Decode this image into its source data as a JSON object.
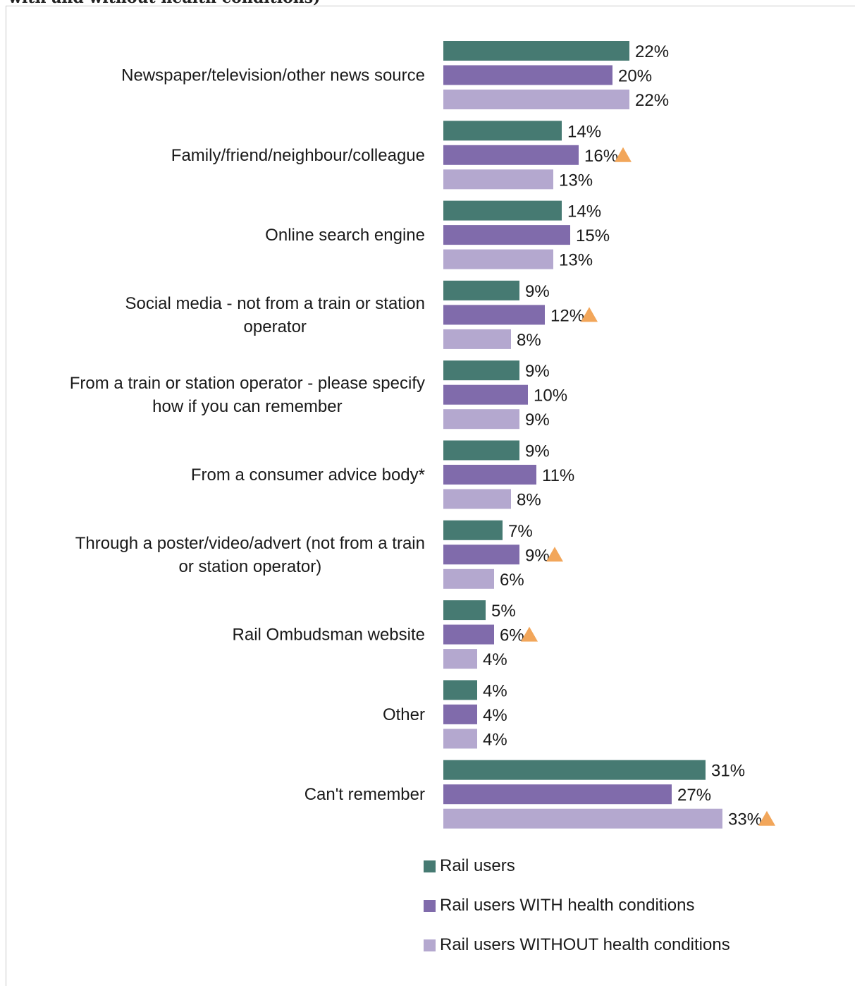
{
  "title": "with and without health conditions)",
  "colors": {
    "rail_users": "#467a72",
    "with_health": "#806bab",
    "without_health": "#b4a8cf",
    "significance_marker": "#f2a65a"
  },
  "chart_data": {
    "type": "bar",
    "orientation": "horizontal",
    "categories": [
      [
        "Newspaper/television/other news source"
      ],
      [
        "Family/friend/neighbour/colleague"
      ],
      [
        "Online search engine"
      ],
      [
        "Social media  - not from a train or station",
        "operator"
      ],
      [
        "From a train or station operator - please specify",
        "how if you can remember"
      ],
      [
        "From a consumer advice body*"
      ],
      [
        "Through a poster/video/advert (not from a train",
        "or station operator)"
      ],
      [
        "Rail Ombudsman website"
      ],
      [
        "Other"
      ],
      [
        "Can't remember"
      ]
    ],
    "series": [
      {
        "name": "Rail users",
        "values": [
          22,
          14,
          14,
          9,
          9,
          9,
          7,
          5,
          4,
          31
        ]
      },
      {
        "name": "Rail users WITH health conditions",
        "values": [
          20,
          16,
          15,
          12,
          10,
          11,
          9,
          6,
          4,
          27
        ]
      },
      {
        "name": "Rail users WITHOUT health conditions",
        "values": [
          22,
          13,
          13,
          8,
          9,
          8,
          6,
          4,
          4,
          33
        ]
      }
    ],
    "value_suffix": "%",
    "significance_markers": [
      {
        "category_index": 1,
        "series_index": 1
      },
      {
        "category_index": 3,
        "series_index": 1
      },
      {
        "category_index": 6,
        "series_index": 1
      },
      {
        "category_index": 7,
        "series_index": 1
      },
      {
        "category_index": 9,
        "series_index": 2
      }
    ],
    "xlim": [
      0,
      33
    ],
    "grid": false,
    "legend_position": "bottom"
  }
}
